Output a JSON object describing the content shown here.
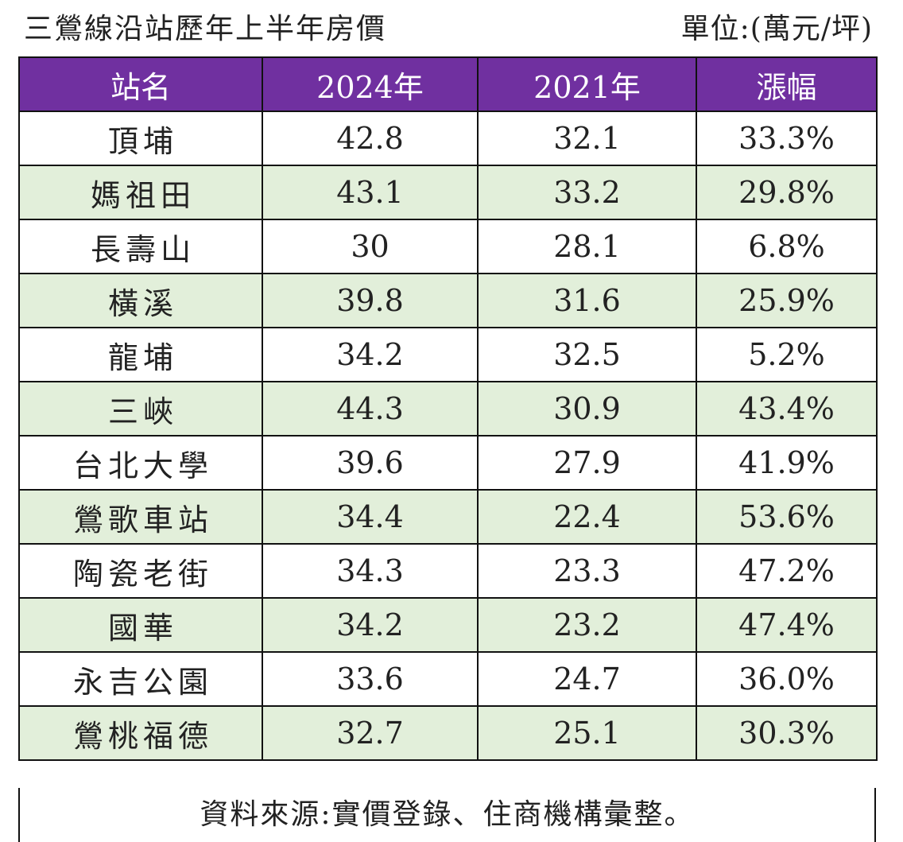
{
  "title": "三鶯線沿站歷年上半年房價",
  "unit": "單位:(萬元/坪)",
  "headers": [
    "站名",
    "2024年",
    "2021年",
    "漲幅"
  ],
  "rows": [
    [
      "頂埔",
      "42.8",
      "32.1",
      "33.3%"
    ],
    [
      "媽祖田",
      "43.1",
      "33.2",
      "29.8%"
    ],
    [
      "長壽山",
      "30",
      "28.1",
      "6.8%"
    ],
    [
      "橫溪",
      "39.8",
      "31.6",
      "25.9%"
    ],
    [
      "龍埔",
      "34.2",
      "32.5",
      "5.2%"
    ],
    [
      "三峽",
      "44.3",
      "30.9",
      "43.4%"
    ],
    [
      "台北大學",
      "39.6",
      "27.9",
      "41.9%"
    ],
    [
      "鶯歌車站",
      "34.4",
      "22.4",
      "53.6%"
    ],
    [
      "陶瓷老街",
      "34.3",
      "23.3",
      "47.2%"
    ],
    [
      "國華",
      "34.2",
      "23.2",
      "47.4%"
    ],
    [
      "永吉公園",
      "33.6",
      "24.7",
      "36.0%"
    ],
    [
      "鶯桃福德",
      "32.7",
      "25.1",
      "30.3%"
    ]
  ],
  "highlight": {
    "row": 7,
    "col": 3
  },
  "source": "資料來源:實價登錄、住商機構彙整。",
  "colors": {
    "header_bg": "#7030a0",
    "header_text": "#ffffff",
    "band_bg": "#e2efda",
    "border": "#111111"
  }
}
